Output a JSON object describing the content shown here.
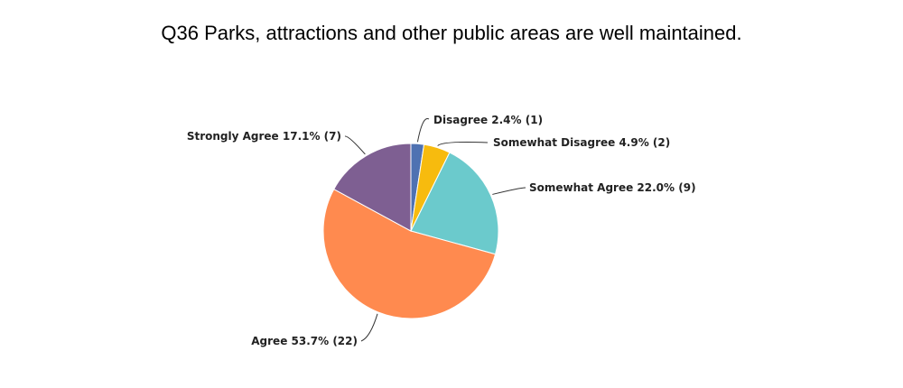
{
  "chart_data": {
    "type": "pie",
    "title": "Q36 Parks, attractions and other public areas are well maintained.",
    "slices": [
      {
        "label": "Disagree",
        "percent": 2.4,
        "count": 1,
        "text": "Disagree 2.4% (1)",
        "color": "#4f72b2"
      },
      {
        "label": "Somewhat Disagree",
        "percent": 4.9,
        "count": 2,
        "text": "Somewhat Disagree 4.9% (2)",
        "color": "#f7bb0e"
      },
      {
        "label": "Somewhat Agree",
        "percent": 22.0,
        "count": 9,
        "text": "Somewhat Agree 22.0% (9)",
        "color": "#6bcacc"
      },
      {
        "label": "Agree",
        "percent": 53.7,
        "count": 22,
        "text": "Agree 53.7% (22)",
        "color": "#ff8a4f"
      },
      {
        "label": "Strongly Agree",
        "percent": 17.1,
        "count": 7,
        "text": "Strongly Agree 17.1% (7)",
        "color": "#7e5f92"
      }
    ],
    "start": "top",
    "direction": "clockwise"
  }
}
